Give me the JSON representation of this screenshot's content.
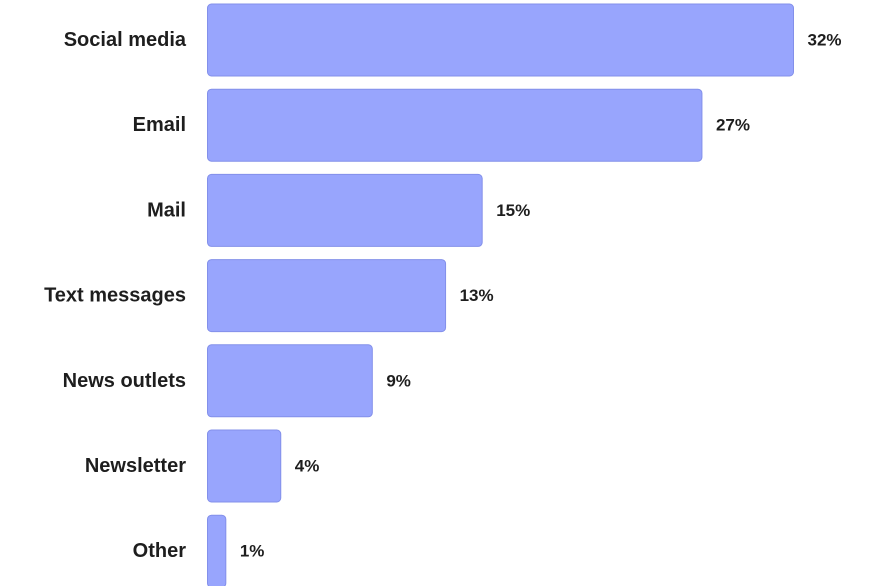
{
  "chart_data": {
    "type": "bar",
    "orientation": "horizontal",
    "categories": [
      "Social media",
      "Email",
      "Mail",
      "Text messages",
      "News outlets",
      "Newsletter",
      "Other"
    ],
    "values": [
      32,
      27,
      15,
      13,
      9,
      4,
      1
    ],
    "value_labels": [
      "32%",
      "27%",
      "15%",
      "13%",
      "9%",
      "4%",
      "1%"
    ],
    "unit": "%",
    "xlim": [
      0,
      32
    ],
    "grid": false,
    "legend": "none"
  },
  "colors": {
    "bar_fill": "#98a5fd",
    "bar_stroke": "#8390ea",
    "text": "#1e1e1e",
    "background": "#ffffff"
  }
}
